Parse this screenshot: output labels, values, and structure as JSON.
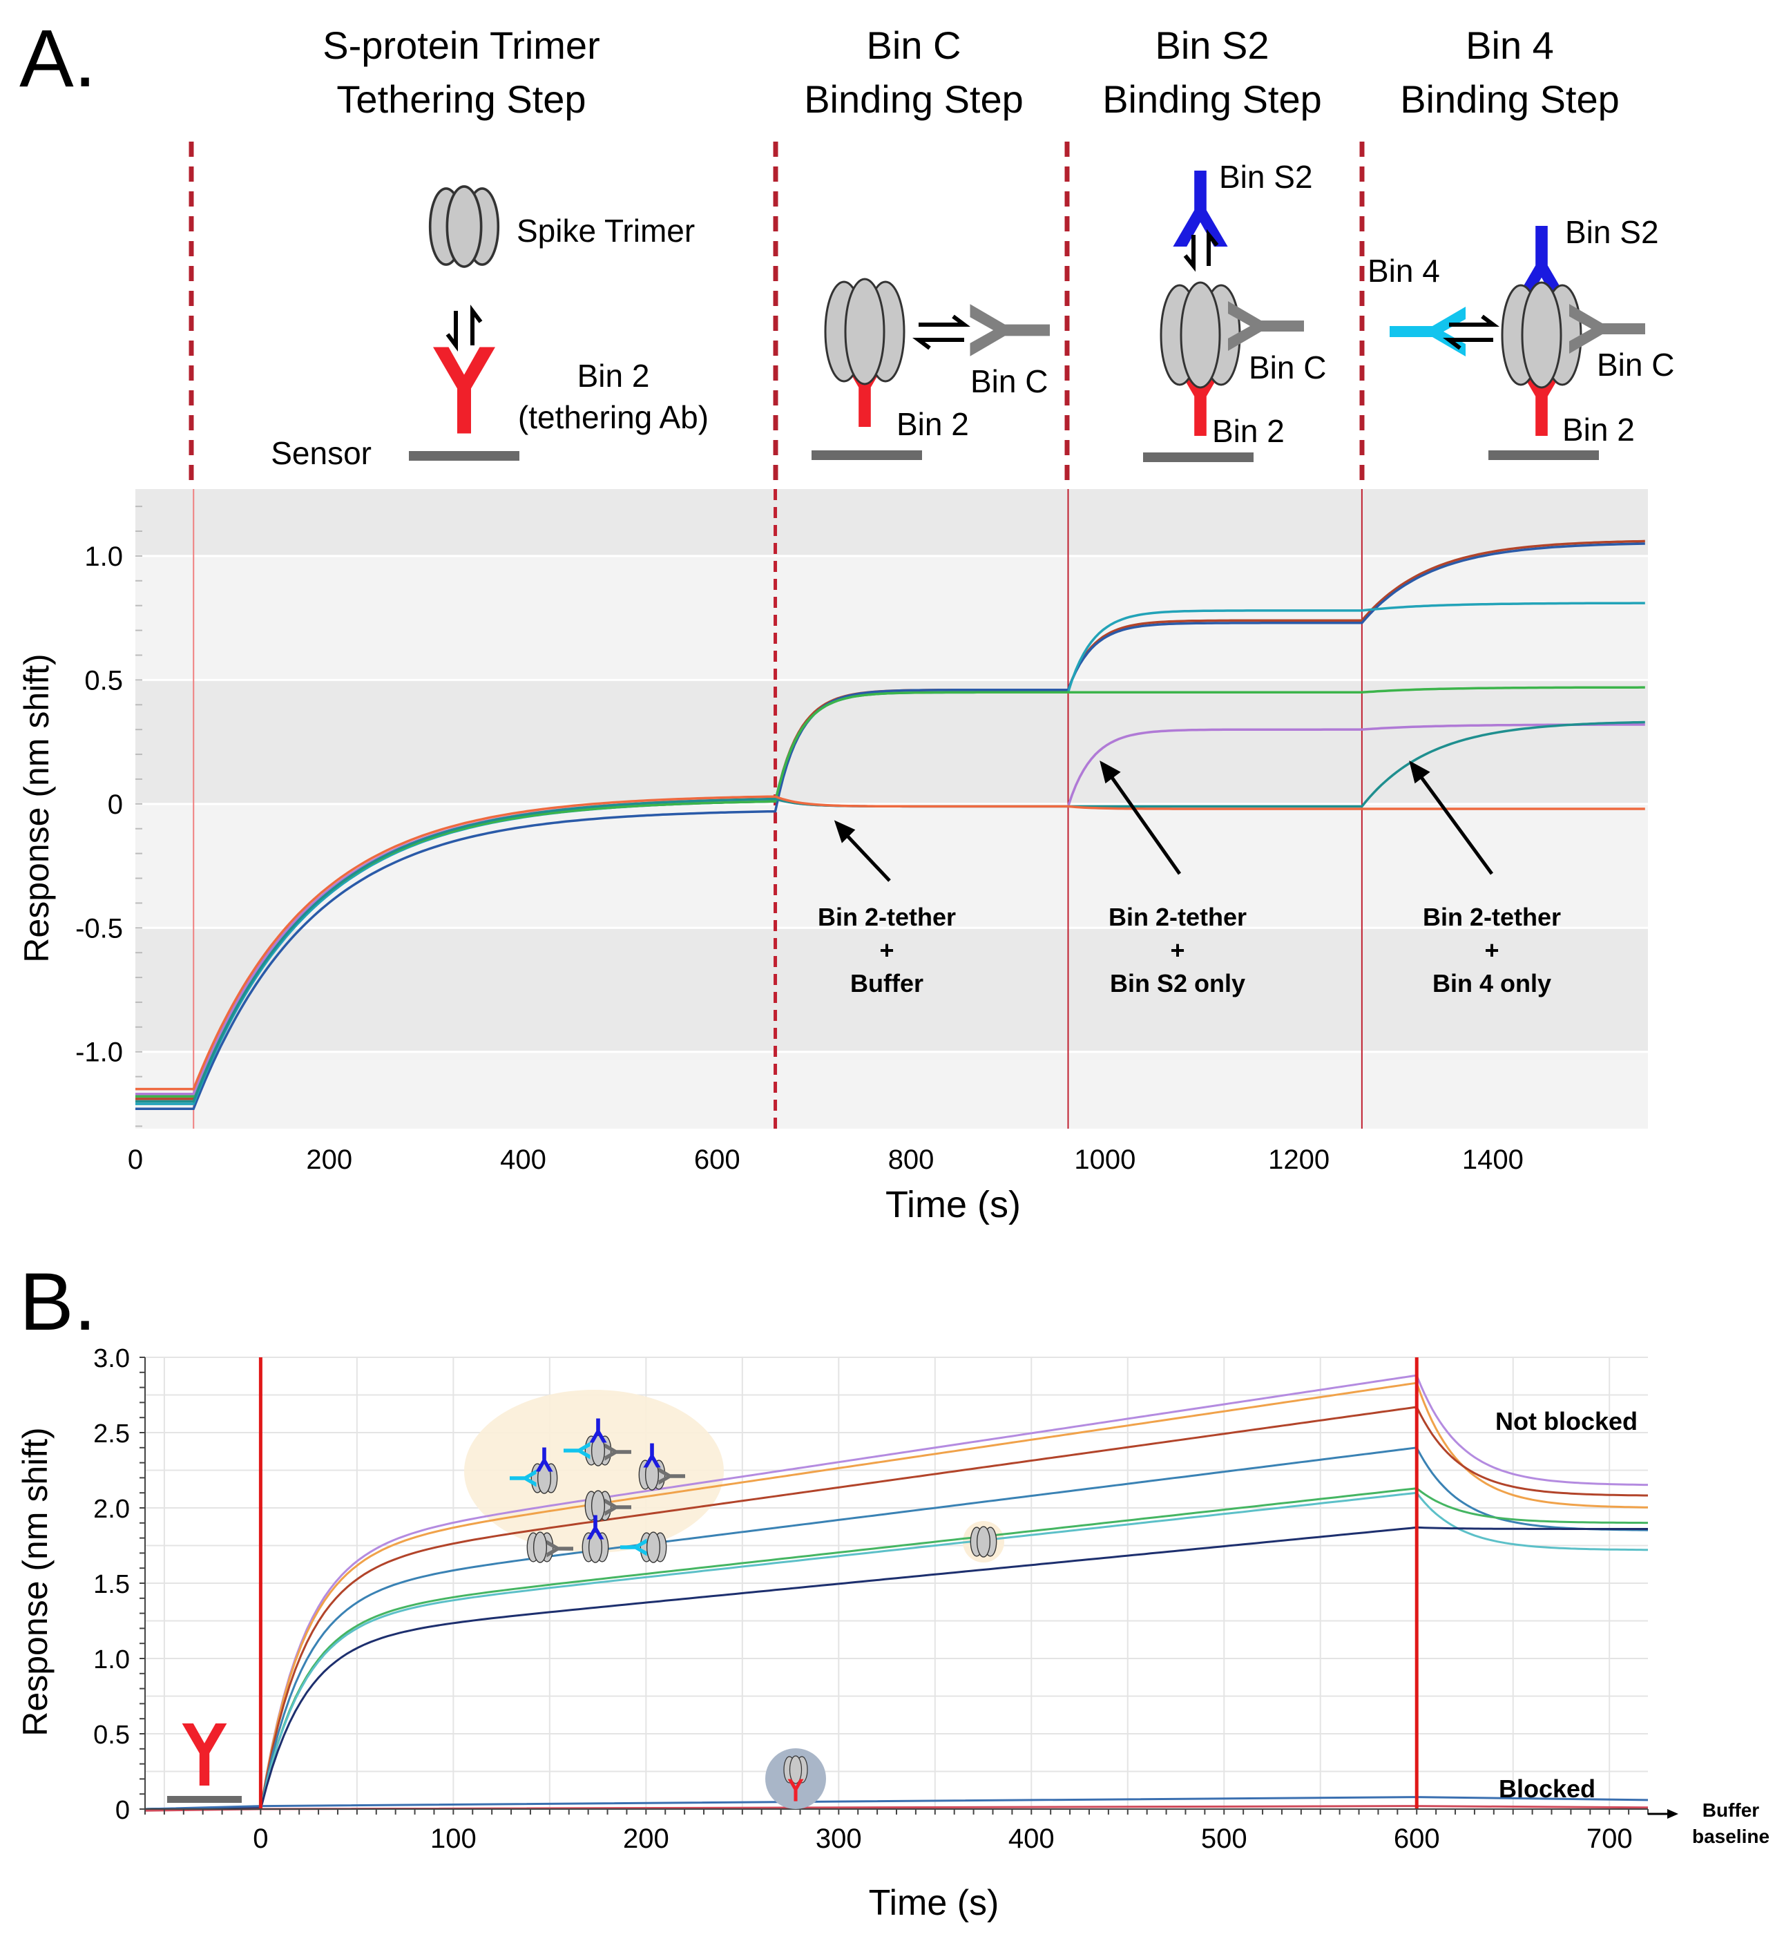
{
  "chart_data": [
    {
      "panel_label": "A.",
      "type": "line",
      "xlabel": "Time (s)",
      "ylabel": "Response (nm shift)",
      "xlim": [
        0,
        1560
      ],
      "ylim": [
        -1.31,
        1.27
      ],
      "xticks": [
        0,
        200,
        400,
        600,
        800,
        1000,
        1200,
        1400
      ],
      "xtick_labels": [
        "0",
        "200",
        "400",
        "600",
        "800",
        "1000",
        "1200",
        "1400"
      ],
      "yticks": [
        1.0,
        0.5,
        0,
        -0.5,
        -1.0
      ],
      "ytick_labels": [
        "1.0",
        "0.5",
        "0",
        "-0.5",
        "-1.0"
      ],
      "step_boundaries_s": [
        60,
        660,
        962,
        1265
      ],
      "steps": [
        {
          "title_line1": "S-protein Trimer",
          "title_line2": "Tethering Step"
        },
        {
          "title_line1": "Bin C",
          "title_line2": "Binding Step"
        },
        {
          "title_line1": "Bin S2",
          "title_line2": "Binding Step"
        },
        {
          "title_line1": "Bin 4",
          "title_line2": "Binding Step"
        }
      ],
      "diagram_labels": {
        "spike_trimer": "Spike Trimer",
        "sensor": "Sensor",
        "bin2_line1": "Bin 2",
        "bin2_line2": "(tethering Ab)",
        "bin2": "Bin 2",
        "bin_c": "Bin C",
        "bin_s2": "Bin S2",
        "bin_4": "Bin 4"
      },
      "annotations": [
        {
          "line1": "Bin 2-tether",
          "line2": "+",
          "line3": "Buffer"
        },
        {
          "line1": "Bin 2-tether",
          "line2": "+",
          "line3": "Bin S2 only"
        },
        {
          "line1": "Bin 2-tether",
          "line2": "+",
          "line3": "Bin 4 only"
        }
      ],
      "series": [
        {
          "name": "Bin C + Bin S2 + Bin 4 (brown)",
          "color": "#b2442a",
          "points": [
            [
              0,
              -1.19
            ],
            [
              60,
              -1.19
            ],
            [
              660,
              0.01
            ],
            [
              962,
              0.46
            ],
            [
              1265,
              0.74
            ],
            [
              1560,
              1.06
            ]
          ]
        },
        {
          "name": "Bin C + Bin S2 + Bin 4 (blue)",
          "color": "#2a5aa8",
          "points": [
            [
              0,
              -1.23
            ],
            [
              60,
              -1.23
            ],
            [
              660,
              -0.03
            ],
            [
              962,
              0.46
            ],
            [
              1265,
              0.73
            ],
            [
              1560,
              1.05
            ]
          ]
        },
        {
          "name": "Bin C + Bin S2 (cyan)",
          "color": "#22a3b8",
          "points": [
            [
              0,
              -1.21
            ],
            [
              60,
              -1.21
            ],
            [
              660,
              0.01
            ],
            [
              962,
              0.45
            ],
            [
              1265,
              0.78
            ],
            [
              1560,
              0.81
            ]
          ]
        },
        {
          "name": "Bin C only (green)",
          "color": "#3cb44b",
          "points": [
            [
              0,
              -1.18
            ],
            [
              60,
              -1.18
            ],
            [
              660,
              0.01
            ],
            [
              962,
              0.45
            ],
            [
              1265,
              0.45
            ],
            [
              1560,
              0.47
            ]
          ]
        },
        {
          "name": "Bin S2 only (purple)",
          "color": "#b07ad6",
          "points": [
            [
              0,
              -1.17
            ],
            [
              60,
              -1.17
            ],
            [
              660,
              0.02
            ],
            [
              962,
              -0.01
            ],
            [
              1265,
              0.3
            ],
            [
              1560,
              0.32
            ]
          ]
        },
        {
          "name": "Bin 4 only (teal)",
          "color": "#1f8f8f",
          "points": [
            [
              0,
              -1.2
            ],
            [
              60,
              -1.2
            ],
            [
              660,
              0.02
            ],
            [
              962,
              -0.01
            ],
            [
              1265,
              -0.01
            ],
            [
              1560,
              0.33
            ]
          ]
        },
        {
          "name": "Buffer (orange)",
          "color": "#ee6a40",
          "points": [
            [
              0,
              -1.15
            ],
            [
              60,
              -1.15
            ],
            [
              660,
              0.03
            ],
            [
              962,
              -0.01
            ],
            [
              1265,
              -0.02
            ],
            [
              1560,
              -0.02
            ]
          ]
        }
      ]
    },
    {
      "panel_label": "B.",
      "type": "line",
      "xlabel": "Time (s)",
      "ylabel": "Response (nm shift)",
      "xlim": [
        -60,
        720
      ],
      "ylim": [
        0,
        3.0
      ],
      "xticks": [
        0,
        100,
        200,
        300,
        400,
        500,
        600,
        700
      ],
      "xtick_labels": [
        "0",
        "100",
        "200",
        "300",
        "400",
        "500",
        "600",
        "700"
      ],
      "yticks": [
        0,
        0.5,
        1.0,
        1.5,
        2.0,
        2.5,
        3.0
      ],
      "ytick_labels": [
        "0",
        "0.5",
        "1.0",
        "1.5",
        "2.0",
        "2.5",
        "3.0"
      ],
      "event_lines_s": [
        0,
        600
      ],
      "annotations": {
        "not_blocked": "Not blocked",
        "blocked": "Blocked",
        "buffer_line1": "Buffer",
        "buffer_line2": "baseline"
      },
      "series": [
        {
          "name": "purple",
          "color": "#b48be0",
          "points": [
            [
              0,
              0.01
            ],
            [
              600,
              2.88
            ],
            [
              720,
              2.15
            ]
          ]
        },
        {
          "name": "orange",
          "color": "#f0a24a",
          "points": [
            [
              0,
              0.01
            ],
            [
              600,
              2.83
            ],
            [
              720,
              2.0
            ]
          ]
        },
        {
          "name": "dark red",
          "color": "#b2442a",
          "points": [
            [
              0,
              0.01
            ],
            [
              600,
              2.67
            ],
            [
              720,
              2.08
            ]
          ]
        },
        {
          "name": "steel blue",
          "color": "#3a82b4",
          "points": [
            [
              0,
              0.01
            ],
            [
              600,
              2.4
            ],
            [
              720,
              1.85
            ]
          ]
        },
        {
          "name": "green",
          "color": "#45b562",
          "points": [
            [
              0,
              0.01
            ],
            [
              600,
              2.13
            ],
            [
              720,
              1.9
            ]
          ]
        },
        {
          "name": "light teal",
          "color": "#5cc0c8",
          "points": [
            [
              0,
              0.01
            ],
            [
              600,
              2.1
            ],
            [
              720,
              1.72
            ]
          ]
        },
        {
          "name": "navy",
          "color": "#1d2f6e",
          "points": [
            [
              0,
              0.01
            ],
            [
              600,
              1.87
            ],
            [
              720,
              1.86
            ]
          ]
        },
        {
          "name": "blocked blue",
          "color": "#3a6fb0",
          "points": [
            [
              -60,
              0.0
            ],
            [
              0,
              0.02
            ],
            [
              600,
              0.08
            ],
            [
              720,
              0.06
            ]
          ]
        },
        {
          "name": "blocked red",
          "color": "#d04a5a",
          "points": [
            [
              -60,
              -0.01
            ],
            [
              0,
              0.0
            ],
            [
              600,
              0.02
            ],
            [
              720,
              0.01
            ]
          ]
        }
      ]
    }
  ]
}
